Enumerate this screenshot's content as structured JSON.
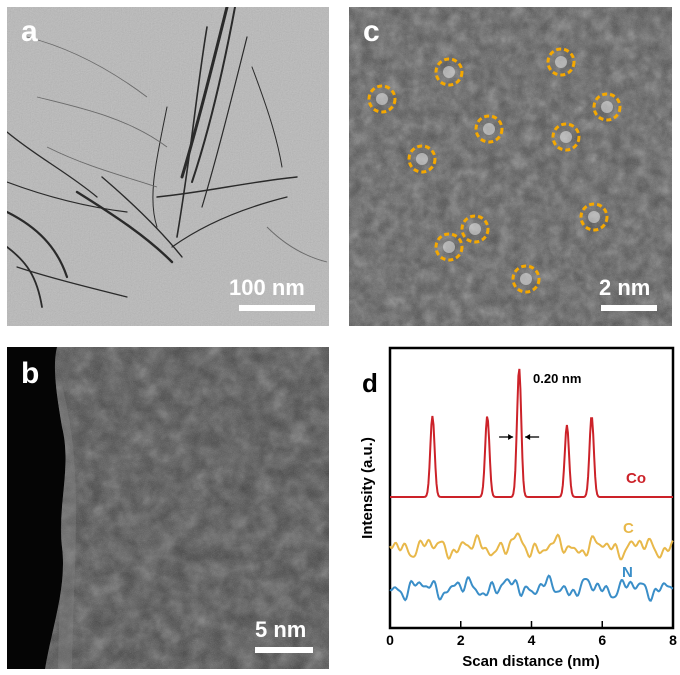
{
  "panels": {
    "a": {
      "label": "a",
      "scale_bar": "100 nm"
    },
    "b": {
      "label": "b",
      "scale_bar": "5 nm"
    },
    "c": {
      "label": "c",
      "scale_bar": "2 nm",
      "marker_color": "#f5a800",
      "marker_count": 11
    },
    "d": {
      "label": "d",
      "annotation": "0.20 nm"
    }
  },
  "chart_data": {
    "type": "line",
    "title": "",
    "xlabel": "Scan distance (nm)",
    "ylabel": "Intensity (a.u.)",
    "xlim": [
      0,
      8
    ],
    "xticks": [
      "0",
      "2",
      "4",
      "6",
      "8"
    ],
    "y_ticks_shown": false,
    "series": [
      {
        "name": "Co",
        "color": "#cc2229",
        "baseline": "flat",
        "peaks_x": [
          1.2,
          2.75,
          3.65,
          5.0,
          5.7
        ],
        "peaks_rel_height": [
          0.54,
          0.54,
          0.86,
          0.48,
          0.54
        ]
      },
      {
        "name": "C",
        "color": "#e8b84a",
        "baseline": "noisy"
      },
      {
        "name": "N",
        "color": "#3a8ec8",
        "baseline": "noisy"
      }
    ],
    "annotation": {
      "text": "0.20 nm",
      "x_center": 3.65,
      "arrows": "inward"
    }
  }
}
